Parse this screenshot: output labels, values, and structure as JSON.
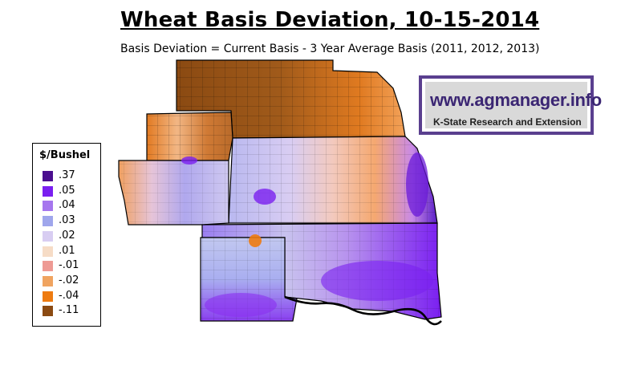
{
  "title": "Wheat Basis Deviation, 10-15-2014",
  "subtitle": "Basis Deviation = Current Basis - 3 Year Average Basis (2011, 2012, 2013)",
  "legend": {
    "title": "$/Bushel",
    "items": [
      {
        "label": ".37",
        "color": "#4b0f8f"
      },
      {
        "label": ".05",
        "color": "#7a1ff0"
      },
      {
        "label": ".04",
        "color": "#a676ee"
      },
      {
        "label": ".03",
        "color": "#9fa6ec"
      },
      {
        "label": ".02",
        "color": "#d8cdf2"
      },
      {
        "label": ".01",
        "color": "#f6dcc6"
      },
      {
        "label": "-.01",
        "color": "#ee9a94"
      },
      {
        "label": "-.02",
        "color": "#f0a460"
      },
      {
        "label": "-.04",
        "color": "#ee7b10"
      },
      {
        "label": "-.11",
        "color": "#8b4a12"
      }
    ]
  },
  "logo": {
    "url_text": "www.agmanager.info",
    "org_text": "K-State Research and Extension"
  }
}
